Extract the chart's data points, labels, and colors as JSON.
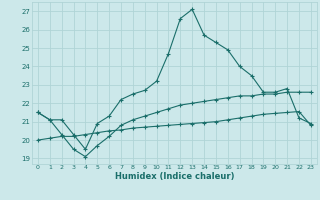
{
  "xlabel": "Humidex (Indice chaleur)",
  "xlim": [
    -0.5,
    23.5
  ],
  "ylim": [
    18.7,
    27.5
  ],
  "yticks": [
    19,
    20,
    21,
    22,
    23,
    24,
    25,
    26,
    27
  ],
  "xticks": [
    0,
    1,
    2,
    3,
    4,
    5,
    6,
    7,
    8,
    9,
    10,
    11,
    12,
    13,
    14,
    15,
    16,
    17,
    18,
    19,
    20,
    21,
    22,
    23
  ],
  "bg_color": "#cce8ea",
  "grid_color": "#b0d4d6",
  "line_color": "#1a6e6a",
  "line1_x": [
    0,
    1,
    2,
    3,
    4,
    5,
    6,
    7,
    8,
    9,
    10,
    11,
    12,
    13,
    14,
    15,
    16,
    17,
    18,
    19,
    20,
    21,
    22,
    23
  ],
  "line1_y": [
    21.5,
    21.1,
    21.1,
    20.3,
    19.5,
    20.9,
    21.3,
    22.2,
    22.5,
    22.7,
    23.2,
    24.7,
    26.6,
    27.1,
    25.7,
    25.3,
    24.9,
    24.0,
    23.5,
    22.6,
    22.6,
    22.8,
    21.2,
    20.9
  ],
  "line2_x": [
    0,
    1,
    2,
    3,
    4,
    5,
    6,
    7,
    8,
    9,
    10,
    11,
    12,
    13,
    14,
    15,
    16,
    17,
    18,
    19,
    20,
    21,
    22,
    23
  ],
  "line2_y": [
    21.5,
    21.1,
    20.3,
    19.5,
    19.1,
    19.7,
    20.2,
    20.8,
    21.1,
    21.3,
    21.5,
    21.7,
    21.9,
    22.0,
    22.1,
    22.2,
    22.3,
    22.4,
    22.4,
    22.5,
    22.5,
    22.6,
    22.6,
    22.6
  ],
  "line3_x": [
    0,
    1,
    2,
    3,
    4,
    5,
    6,
    7,
    8,
    9,
    10,
    11,
    12,
    13,
    14,
    15,
    16,
    17,
    18,
    19,
    20,
    21,
    22,
    23
  ],
  "line3_y": [
    20.0,
    20.1,
    20.2,
    20.2,
    20.3,
    20.4,
    20.5,
    20.55,
    20.65,
    20.7,
    20.75,
    20.8,
    20.85,
    20.9,
    20.95,
    21.0,
    21.1,
    21.2,
    21.3,
    21.4,
    21.45,
    21.5,
    21.55,
    20.8
  ]
}
